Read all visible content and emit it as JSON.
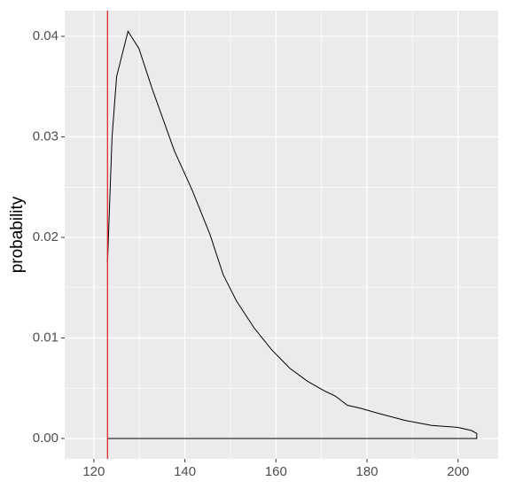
{
  "chart_data": {
    "type": "density",
    "y_label": "probability",
    "x": [
      123.0,
      124.0,
      125.0,
      127.5,
      129.9,
      132.8,
      137.7,
      141.6,
      145.5,
      148.4,
      151.3,
      155.2,
      159.1,
      163.0,
      166.9,
      170.8,
      173.1,
      175.7,
      178.6,
      182.5,
      188.3,
      194.2,
      200.0,
      202.9,
      204.1,
      204.1,
      123.0
    ],
    "values": [
      0.0175,
      0.03,
      0.036,
      0.0405,
      0.0388,
      0.0348,
      0.0286,
      0.0247,
      0.0203,
      0.0163,
      0.0137,
      0.011,
      0.0088,
      0.007,
      0.0057,
      0.0047,
      0.0042,
      0.0033,
      0.003,
      0.0025,
      0.0018,
      0.0013,
      0.0011,
      0.0008,
      0.0005,
      0,
      0
    ],
    "color": "#000000",
    "vline": {
      "x": 123.0,
      "color": "#e41a1c"
    },
    "xlim": [
      113.6,
      208.8
    ],
    "ylim": [
      -0.00203,
      0.04256
    ],
    "xticks": [
      120,
      140,
      160,
      180,
      200
    ],
    "yticks": [
      {
        "value": 0,
        "label": "0.00"
      },
      {
        "value": 0.01,
        "label": "0.01"
      },
      {
        "value": 0.02,
        "label": "0.02"
      },
      {
        "value": 0.03,
        "label": "0.03"
      },
      {
        "value": 0.04,
        "label": "0.04"
      }
    ],
    "x_minor_grid": [
      130,
      150,
      170,
      190
    ],
    "y_minor_grid": [
      0.005,
      0.015,
      0.025,
      0.035
    ],
    "grid": true,
    "panel_color": "#ebebeb"
  }
}
